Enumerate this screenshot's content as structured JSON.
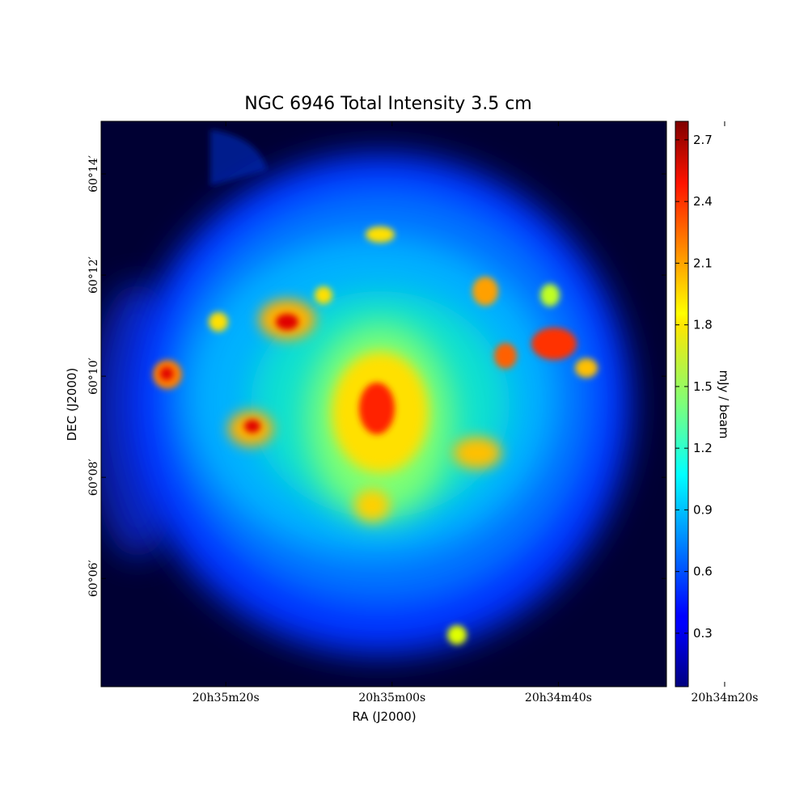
{
  "chart_data": {
    "type": "image",
    "title": "NGC 6946 Total Intensity 3.5 cm",
    "xlabel": "RA (J2000)",
    "ylabel": "DEC (J2000)",
    "xlim": [
      2135,
      2067
    ],
    "xticks": [
      {
        "value": 2120,
        "label": "20h35m20s"
      },
      {
        "value": 2100,
        "label": "20h35m00s"
      },
      {
        "value": 2080,
        "label": "20h34m40s"
      },
      {
        "value": 2060,
        "label": "20h34m20s"
      }
    ],
    "ylim": [
      3.86,
      15.04
    ],
    "yticks": [
      {
        "value": 6,
        "label": "60°06′"
      },
      {
        "value": 8,
        "label": "60°08′"
      },
      {
        "value": 10,
        "label": "60°10′"
      },
      {
        "value": 12,
        "label": "60°12′"
      },
      {
        "value": 14,
        "label": "60°14′"
      }
    ],
    "colormap": "jet",
    "colorbar_label": "mJy / beam",
    "clim": [
      0.04,
      2.79
    ],
    "cticks": [
      0.3,
      0.6,
      0.9,
      1.2,
      1.5,
      1.8,
      2.1,
      2.4,
      2.7
    ]
  }
}
